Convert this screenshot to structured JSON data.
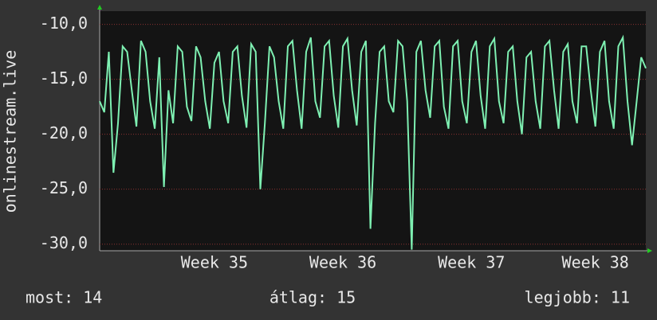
{
  "chart_data": {
    "type": "line",
    "ylabel": "onlinestream.live",
    "color": "#7ef0b2",
    "grid": true,
    "ylim": [
      -30.6,
      -8.8
    ],
    "yticks": [
      {
        "value": -30,
        "label": "-30,0"
      },
      {
        "value": -25,
        "label": "-25,0"
      },
      {
        "value": -20,
        "label": "-20,0"
      },
      {
        "value": -15,
        "label": "-15,0"
      },
      {
        "value": -10,
        "label": "-10,0"
      }
    ],
    "categories": [
      null,
      null,
      null,
      null,
      null,
      null,
      null,
      null,
      null,
      null,
      null,
      null,
      null,
      null,
      null,
      null,
      null,
      null,
      null,
      null,
      null,
      null,
      null,
      null,
      null,
      "Week 35",
      null,
      null,
      null,
      null,
      null,
      null,
      null,
      null,
      null,
      null,
      null,
      null,
      null,
      null,
      null,
      null,
      null,
      null,
      null,
      null,
      null,
      null,
      null,
      null,
      null,
      null,
      null,
      "Week 36",
      null,
      null,
      null,
      null,
      null,
      null,
      null,
      null,
      null,
      null,
      null,
      null,
      null,
      null,
      null,
      null,
      null,
      null,
      null,
      null,
      null,
      null,
      null,
      null,
      null,
      null,
      null,
      "Week 37",
      null,
      null,
      null,
      null,
      null,
      null,
      null,
      null,
      null,
      null,
      null,
      null,
      null,
      null,
      null,
      null,
      null,
      null,
      null,
      null,
      null,
      null,
      null,
      null,
      null,
      null,
      "Week 38",
      null,
      null,
      null,
      null,
      null,
      null,
      null,
      null,
      null,
      null,
      null
    ],
    "values": [
      -17,
      -18,
      -12.5,
      -23.5,
      -19,
      -12,
      -12.5,
      -16,
      -19.3,
      -11.5,
      -12.5,
      -17,
      -19.5,
      -13,
      -24.8,
      -16,
      -19,
      -12,
      -12.5,
      -17.5,
      -18.8,
      -12,
      -13,
      -17,
      -19.5,
      -13.5,
      -12.5,
      -17,
      -19,
      -12.5,
      -12,
      -16.5,
      -19.4,
      -11.8,
      -12.5,
      -25,
      -19,
      -12,
      -13,
      -17,
      -19.5,
      -12,
      -11.5,
      -16,
      -19.5,
      -12.5,
      -11.2,
      -17,
      -18.5,
      -12,
      -11.5,
      -16.5,
      -19.4,
      -12,
      -11.3,
      -16,
      -19.2,
      -12.5,
      -11.5,
      -28.6,
      -19,
      -12.5,
      -12,
      -17,
      -18,
      -11.5,
      -12,
      -17,
      -30.5,
      -12.5,
      -11.5,
      -16,
      -18.5,
      -12,
      -11.5,
      -17.5,
      -19.5,
      -12,
      -11.5,
      -17,
      -19,
      -12.5,
      -11.5,
      -16.5,
      -19.5,
      -12,
      -11.3,
      -17,
      -19,
      -12.5,
      -12,
      -17,
      -20,
      -13,
      -12.5,
      -17,
      -19.5,
      -12,
      -11.5,
      -16,
      -19.5,
      -12.5,
      -11.8,
      -17,
      -19,
      -12,
      -12,
      -16,
      -19.3,
      -12.5,
      -11.5,
      -17,
      -19.5,
      -12,
      -11.2,
      -17,
      -21,
      -17,
      -13,
      -14
    ]
  },
  "stats": [
    "most: 14",
    "átlag: 15",
    "legjobb: 11"
  ]
}
